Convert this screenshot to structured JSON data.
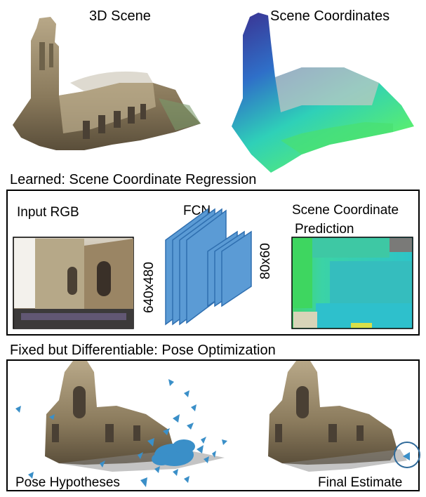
{
  "top": {
    "left_title": "3D Scene",
    "right_title": "Scene Coordinates"
  },
  "learned": {
    "heading": "Learned: Scene Coordinate Regression",
    "input_label": "Input RGB",
    "network_label": "FCN",
    "input_size": "640x480",
    "output_size": "80x60",
    "prediction_label_line1": "Scene Coordinate",
    "prediction_label_line2": "Prediction"
  },
  "pose": {
    "heading": "Fixed but Differentiable: Pose Optimization",
    "left_label": "Pose Hypotheses",
    "right_label": "Final Estimate"
  },
  "colors": {
    "fcn_blue": "#5b9bd5",
    "fcn_edge": "#2f6fb0",
    "pose_blue": "#3a8fc8"
  }
}
